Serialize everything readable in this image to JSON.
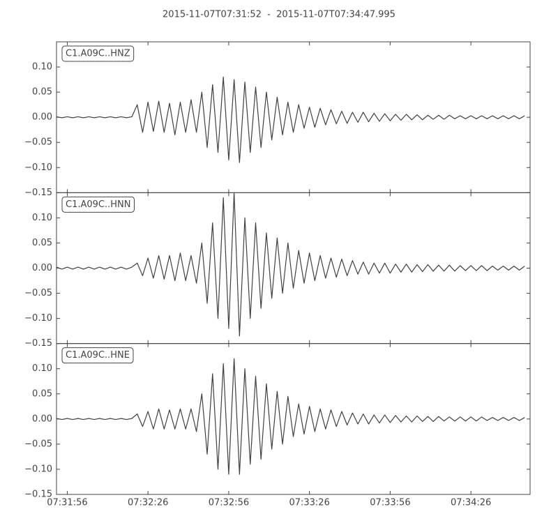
{
  "title": "2015-11-07T07:31:52  -  2015-11-07T07:34:47.995",
  "chart_data": [
    {
      "type": "line",
      "label": "C1.A09C..HNZ",
      "color": "#404040",
      "x": [
        0,
        2,
        4,
        6,
        8,
        10,
        12,
        14,
        16,
        18,
        20,
        22,
        24,
        26,
        28,
        30,
        32,
        34,
        36,
        38,
        40,
        42,
        44,
        46,
        48,
        50,
        52,
        54,
        56,
        58,
        60,
        62,
        64,
        66,
        68,
        70,
        72,
        74,
        76,
        78,
        80,
        82,
        84,
        86,
        88,
        90,
        92,
        94,
        96,
        98,
        100,
        102,
        104,
        106,
        108,
        110,
        112,
        114,
        116,
        118,
        120,
        122,
        124,
        126,
        128,
        130,
        132,
        134,
        136,
        138,
        140,
        142,
        144,
        146,
        148,
        150,
        152,
        154,
        156,
        158,
        160,
        162,
        164,
        166,
        168,
        170,
        172,
        174
      ],
      "values": [
        0.001,
        -0.001,
        0.001,
        -0.001,
        0.001,
        -0.001,
        0.001,
        -0.001,
        0.001,
        -0.001,
        0.001,
        -0.001,
        0.001,
        -0.001,
        0.001,
        0.025,
        -0.03,
        0.03,
        -0.028,
        0.032,
        -0.03,
        0.028,
        -0.035,
        0.03,
        -0.03,
        0.035,
        -0.03,
        0.05,
        -0.06,
        0.065,
        -0.07,
        0.08,
        -0.085,
        0.075,
        -0.09,
        0.07,
        -0.07,
        0.06,
        -0.06,
        0.05,
        -0.045,
        0.04,
        -0.035,
        0.03,
        -0.03,
        0.025,
        -0.022,
        0.02,
        -0.02,
        0.018,
        -0.015,
        0.015,
        -0.013,
        0.012,
        -0.012,
        0.01,
        -0.01,
        0.01,
        -0.009,
        0.008,
        -0.008,
        0.007,
        -0.007,
        0.006,
        -0.006,
        0.006,
        -0.005,
        0.005,
        -0.005,
        0.004,
        -0.004,
        0.004,
        -0.004,
        0.004,
        -0.003,
        0.003,
        -0.003,
        0.003,
        -0.003,
        0.003,
        -0.003,
        0.003,
        -0.003,
        0.003,
        -0.003,
        0.003,
        -0.003,
        0.003
      ],
      "xlim": [
        0,
        175.995
      ],
      "ylim": [
        -0.15,
        0.15
      ],
      "yticks": [
        {
          "value": -0.15,
          "label": "−0.15"
        },
        {
          "value": -0.1,
          "label": "−0.10"
        },
        {
          "value": -0.05,
          "label": "−0.05"
        },
        {
          "value": 0,
          "label": "0.00"
        },
        {
          "value": 0.05,
          "label": "0.05"
        },
        {
          "value": 0.1,
          "label": "0.10"
        }
      ]
    },
    {
      "type": "line",
      "label": "C1.A09C..HNN",
      "color": "#404040",
      "x": [
        0,
        2,
        4,
        6,
        8,
        10,
        12,
        14,
        16,
        18,
        20,
        22,
        24,
        26,
        28,
        30,
        32,
        34,
        36,
        38,
        40,
        42,
        44,
        46,
        48,
        50,
        52,
        54,
        56,
        58,
        60,
        62,
        64,
        66,
        68,
        70,
        72,
        74,
        76,
        78,
        80,
        82,
        84,
        86,
        88,
        90,
        92,
        94,
        96,
        98,
        100,
        102,
        104,
        106,
        108,
        110,
        112,
        114,
        116,
        118,
        120,
        122,
        124,
        126,
        128,
        130,
        132,
        134,
        136,
        138,
        140,
        142,
        144,
        146,
        148,
        150,
        152,
        154,
        156,
        158,
        160,
        162,
        164,
        166,
        168,
        170,
        172,
        174
      ],
      "values": [
        0.002,
        -0.002,
        0.002,
        -0.002,
        0.002,
        -0.002,
        0.002,
        -0.002,
        0.002,
        -0.002,
        0.002,
        -0.002,
        0.002,
        -0.002,
        0.002,
        0.01,
        -0.015,
        0.02,
        -0.02,
        0.025,
        -0.022,
        0.025,
        -0.025,
        0.03,
        -0.025,
        0.025,
        -0.03,
        0.05,
        -0.07,
        0.09,
        -0.1,
        0.14,
        -0.12,
        0.15,
        -0.135,
        0.1,
        -0.1,
        0.09,
        -0.08,
        0.07,
        -0.06,
        0.06,
        -0.05,
        0.05,
        -0.04,
        0.035,
        -0.03,
        0.03,
        -0.025,
        0.025,
        -0.02,
        0.02,
        -0.018,
        0.018,
        -0.015,
        0.015,
        -0.012,
        0.012,
        -0.012,
        0.01,
        -0.01,
        0.01,
        -0.01,
        0.008,
        -0.008,
        0.008,
        -0.008,
        0.007,
        -0.007,
        0.007,
        -0.006,
        0.006,
        -0.006,
        0.006,
        -0.006,
        0.005,
        -0.005,
        0.005,
        -0.005,
        0.005,
        -0.005,
        0.004,
        -0.004,
        0.004,
        -0.004,
        0.004,
        -0.004,
        0.004
      ],
      "xlim": [
        0,
        175.995
      ],
      "ylim": [
        -0.15,
        0.15
      ],
      "yticks": [
        {
          "value": -0.15,
          "label": "−0.15"
        },
        {
          "value": -0.1,
          "label": "−0.10"
        },
        {
          "value": -0.05,
          "label": "−0.05"
        },
        {
          "value": 0,
          "label": "0.00"
        },
        {
          "value": 0.05,
          "label": "0.05"
        },
        {
          "value": 0.1,
          "label": "0.10"
        }
      ]
    },
    {
      "type": "line",
      "label": "C1.A09C..HNE",
      "color": "#404040",
      "x": [
        0,
        2,
        4,
        6,
        8,
        10,
        12,
        14,
        16,
        18,
        20,
        22,
        24,
        26,
        28,
        30,
        32,
        34,
        36,
        38,
        40,
        42,
        44,
        46,
        48,
        50,
        52,
        54,
        56,
        58,
        60,
        62,
        64,
        66,
        68,
        70,
        72,
        74,
        76,
        78,
        80,
        82,
        84,
        86,
        88,
        90,
        92,
        94,
        96,
        98,
        100,
        102,
        104,
        106,
        108,
        110,
        112,
        114,
        116,
        118,
        120,
        122,
        124,
        126,
        128,
        130,
        132,
        134,
        136,
        138,
        140,
        142,
        144,
        146,
        148,
        150,
        152,
        154,
        156,
        158,
        160,
        162,
        164,
        166,
        168,
        170,
        172,
        174
      ],
      "values": [
        0.001,
        -0.001,
        0.001,
        -0.001,
        0.001,
        -0.001,
        0.001,
        -0.001,
        0.001,
        -0.001,
        0.001,
        -0.001,
        0.001,
        -0.001,
        0.001,
        0.01,
        -0.015,
        0.015,
        -0.02,
        0.02,
        -0.02,
        0.018,
        -0.02,
        0.02,
        -0.02,
        0.02,
        -0.025,
        0.05,
        -0.07,
        0.09,
        -0.1,
        0.11,
        -0.11,
        0.12,
        -0.11,
        0.1,
        -0.09,
        0.085,
        -0.08,
        0.07,
        -0.06,
        0.055,
        -0.05,
        0.045,
        -0.035,
        0.03,
        -0.03,
        0.025,
        -0.025,
        0.02,
        -0.02,
        0.018,
        -0.015,
        0.015,
        -0.012,
        0.012,
        -0.01,
        0.01,
        -0.01,
        0.008,
        -0.008,
        0.008,
        -0.007,
        0.007,
        -0.006,
        0.006,
        -0.006,
        0.006,
        -0.005,
        0.005,
        -0.005,
        0.005,
        -0.004,
        0.004,
        -0.004,
        0.004,
        -0.004,
        0.004,
        -0.004,
        0.004,
        -0.003,
        0.003,
        -0.003,
        0.003,
        -0.003,
        0.003,
        -0.003,
        0.003
      ],
      "xlim": [
        0,
        175.995
      ],
      "ylim": [
        -0.15,
        0.15
      ],
      "yticks": [
        {
          "value": -0.15,
          "label": "−0.15"
        },
        {
          "value": -0.1,
          "label": "−0.10"
        },
        {
          "value": -0.05,
          "label": "−0.05"
        },
        {
          "value": 0,
          "label": "0.00"
        },
        {
          "value": 0.05,
          "label": "0.05"
        },
        {
          "value": 0.1,
          "label": "0.10"
        }
      ],
      "xticks": [
        {
          "value": 4,
          "label": "07:31:56"
        },
        {
          "value": 34,
          "label": "07:32:26"
        },
        {
          "value": 64,
          "label": "07:32:56"
        },
        {
          "value": 94,
          "label": "07:33:26"
        },
        {
          "value": 124,
          "label": "07:33:56"
        },
        {
          "value": 154,
          "label": "07:34:26"
        }
      ]
    }
  ]
}
